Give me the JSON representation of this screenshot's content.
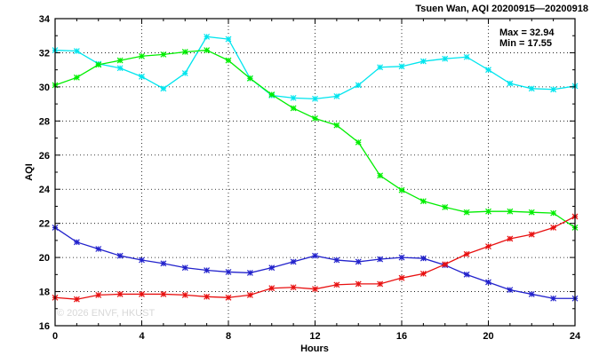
{
  "chart_data": {
    "type": "line",
    "title": "Tsuen Wan, AQI 20200915—20200918",
    "xlabel": "Hours",
    "ylabel": "AQI",
    "xlim": [
      0,
      24
    ],
    "ylim": [
      16,
      34
    ],
    "xticks": [
      0,
      4,
      8,
      12,
      16,
      20,
      24
    ],
    "yticks": [
      16,
      18,
      20,
      22,
      24,
      26,
      28,
      30,
      32,
      34
    ],
    "grid": true,
    "stats": [
      "Max = 32.94",
      "Min = 17.55"
    ],
    "watermark": "© 2026 ENVF, HKUST",
    "x": [
      0,
      1,
      2,
      3,
      4,
      5,
      6,
      7,
      8,
      9,
      10,
      11,
      12,
      13,
      14,
      15,
      16,
      17,
      18,
      19,
      20,
      21,
      22,
      23,
      24
    ],
    "series": [
      {
        "color": "#00e5ee",
        "values": [
          32.15,
          32.1,
          31.35,
          31.1,
          30.6,
          29.9,
          30.8,
          32.94,
          32.8,
          30.5,
          29.5,
          29.35,
          29.3,
          29.45,
          30.1,
          31.15,
          31.2,
          31.5,
          31.65,
          31.75,
          31.0,
          30.2,
          29.9,
          29.85,
          30.05
        ]
      },
      {
        "color": "#00ee00",
        "values": [
          30.1,
          30.55,
          31.3,
          31.55,
          31.8,
          31.9,
          32.05,
          32.15,
          31.55,
          30.5,
          29.55,
          28.75,
          28.15,
          27.75,
          26.75,
          24.8,
          23.95,
          23.3,
          22.95,
          22.65,
          22.7,
          22.7,
          22.65,
          22.6,
          21.75
        ]
      },
      {
        "color": "#2222cc",
        "values": [
          21.75,
          20.9,
          20.5,
          20.1,
          19.85,
          19.65,
          19.4,
          19.25,
          19.15,
          19.1,
          19.4,
          19.75,
          20.1,
          19.85,
          19.75,
          19.9,
          20.0,
          19.95,
          19.55,
          19.0,
          18.55,
          18.1,
          17.85,
          17.6,
          17.6
        ]
      },
      {
        "color": "#e81010",
        "values": [
          17.65,
          17.55,
          17.8,
          17.85,
          17.85,
          17.85,
          17.8,
          17.7,
          17.65,
          17.8,
          18.2,
          18.25,
          18.15,
          18.4,
          18.45,
          18.45,
          18.8,
          19.05,
          19.6,
          20.2,
          20.65,
          21.1,
          21.35,
          21.75,
          22.4
        ]
      }
    ]
  }
}
